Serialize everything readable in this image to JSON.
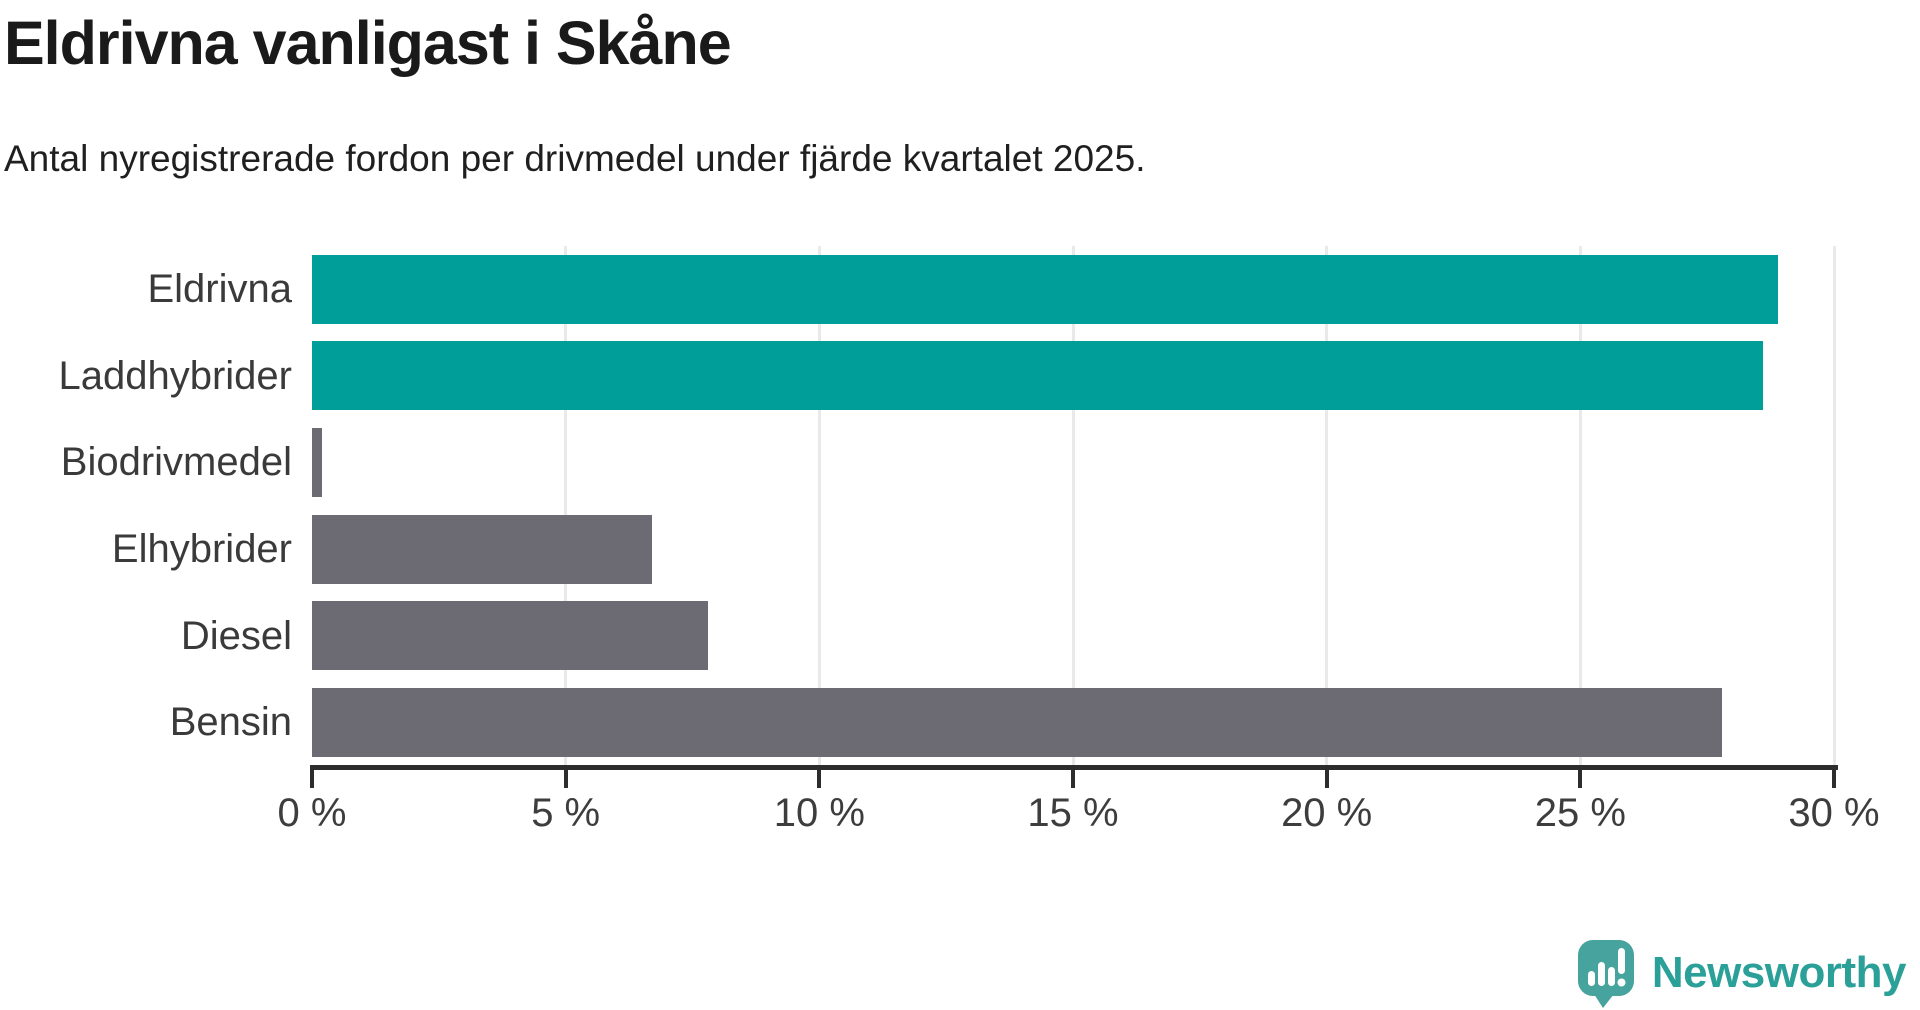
{
  "header": {
    "title": "Eldrivna vanligast i Skåne",
    "subtitle": "Antal nyregistrerade fordon per drivmedel under fjärde kvartalet 2025."
  },
  "chart_data": {
    "type": "bar",
    "orientation": "horizontal",
    "title": "Eldrivna vanligast i Skåne",
    "subtitle": "Antal nyregistrerade fordon per drivmedel under fjärde kvartalet 2025.",
    "categories": [
      "Eldrivna",
      "Laddhybrider",
      "Biodrivmedel",
      "Elhybrider",
      "Diesel",
      "Bensin"
    ],
    "values": [
      28.9,
      28.6,
      0.2,
      6.7,
      7.8,
      27.8
    ],
    "highlight": [
      true,
      true,
      false,
      false,
      false,
      false
    ],
    "unit": "%",
    "xlim": [
      0,
      30
    ],
    "x_ticks": [
      0,
      5,
      10,
      15,
      20,
      25,
      30
    ],
    "x_tick_labels": [
      "0 %",
      "5 %",
      "10 %",
      "15 %",
      "20 %",
      "25 %",
      "30 %"
    ],
    "grid": "vertical-only",
    "legend": "none"
  },
  "palette": {
    "highlight_bar": "#009e98",
    "default_bar": "#6c6a72",
    "gridline": "#e9e9e9",
    "axis": "#2d2d2d",
    "tick_label": "#3d3d3d",
    "category_label": "#3a3a3a"
  },
  "branding": {
    "logo_text": "Newsworthy",
    "logo_text_color": "#2ba099",
    "icon_color": "#46a39d",
    "icon_name": "newsworthy-chart-bubble-icon"
  }
}
